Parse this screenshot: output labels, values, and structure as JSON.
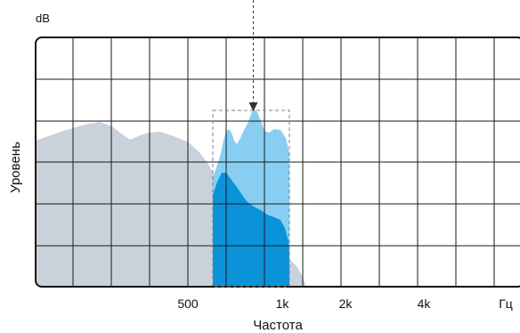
{
  "chart_data": {
    "type": "area",
    "title": "",
    "xlabel": "Частота",
    "ylabel": "Уровень",
    "y_unit_label": "dB",
    "x_tick_labels": [
      "500",
      "1k",
      "2k",
      "4k",
      "Гц"
    ],
    "grid": true,
    "legend": "none",
    "colors": {
      "background_spectrum": "#c9d1da",
      "band_light": "#88cef3",
      "band_dark": "#0a93d8",
      "grid": "#1a1a1a",
      "highlight_box": "#808080",
      "arrow": "#333333"
    }
  }
}
